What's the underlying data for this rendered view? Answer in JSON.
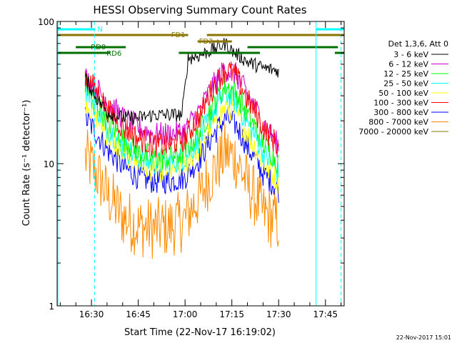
{
  "chart_data": {
    "type": "line",
    "title": "HESSI Observing Summary Count Rates",
    "xlabel": "Start Time (22-Nov-17 16:19:02)",
    "ylabel": "Count Rate (s⁻¹ detector⁻¹)",
    "x_scale": "time",
    "y_scale": "log",
    "xlim": [
      "16:19",
      "17:51"
    ],
    "ylim": [
      1,
      100
    ],
    "x_ticks": [
      "16:30",
      "16:45",
      "17:00",
      "17:15",
      "17:30",
      "17:45"
    ],
    "y_ticks": [
      "1",
      "10",
      "100"
    ],
    "legend_title": "Det 1,3,6, Att 0",
    "legend_position": "right",
    "grid": false,
    "series": [
      {
        "name": "3 - 6 keV",
        "color": "#000000",
        "x": [
          "16:28",
          "16:31",
          "16:35",
          "16:40",
          "16:45",
          "16:50",
          "16:55",
          "16:59",
          "17:00",
          "17:01",
          "17:05",
          "17:10",
          "17:13",
          "17:15",
          "17:20",
          "17:25",
          "17:30"
        ],
        "y": [
          40,
          30,
          23,
          21,
          21,
          22,
          22,
          22,
          34,
          55,
          58,
          65,
          70,
          62,
          52,
          47,
          45
        ]
      },
      {
        "name": "6 - 12 keV",
        "color": "#cc00cc",
        "x": [
          "16:28",
          "16:31",
          "16:35",
          "16:40",
          "16:45",
          "16:50",
          "16:55",
          "17:00",
          "17:05",
          "17:10",
          "17:13",
          "17:16",
          "17:20",
          "17:25",
          "17:30"
        ],
        "y": [
          40,
          35,
          27,
          21,
          18,
          16,
          16,
          17,
          24,
          38,
          46,
          43,
          30,
          19,
          13
        ]
      },
      {
        "name": "12 - 25 keV",
        "color": "#00ff00",
        "x": [
          "16:28",
          "16:31",
          "16:35",
          "16:40",
          "16:45",
          "16:50",
          "16:55",
          "17:00",
          "17:05",
          "17:10",
          "17:13",
          "17:16",
          "17:20",
          "17:25",
          "17:30"
        ],
        "y": [
          36,
          28,
          20,
          15,
          12,
          11,
          11,
          12,
          17,
          28,
          35,
          32,
          22,
          14,
          10
        ]
      },
      {
        "name": "25 - 50 keV",
        "color": "#00ffff",
        "x": [
          "16:28",
          "16:31",
          "16:35",
          "16:40",
          "16:45",
          "16:50",
          "16:55",
          "17:00",
          "17:05",
          "17:10",
          "17:13",
          "17:16",
          "17:20",
          "17:25",
          "17:30"
        ],
        "y": [
          34,
          26,
          18,
          13,
          11,
          10,
          10,
          11,
          15,
          25,
          31,
          28,
          19,
          12,
          8.5
        ]
      },
      {
        "name": "50 - 100 keV",
        "color": "#ffff00",
        "x": [
          "16:28",
          "16:31",
          "16:35",
          "16:40",
          "16:45",
          "16:50",
          "16:55",
          "17:00",
          "17:05",
          "17:10",
          "17:13",
          "17:16",
          "17:20",
          "17:25",
          "17:30"
        ],
        "y": [
          28,
          22,
          16,
          12,
          10,
          9,
          9,
          9.5,
          13,
          20,
          25,
          23,
          16,
          10,
          7.5
        ]
      },
      {
        "name": "100 - 300 keV",
        "color": "#ff0000",
        "x": [
          "16:28",
          "16:31",
          "16:35",
          "16:40",
          "16:45",
          "16:50",
          "16:55",
          "17:00",
          "17:05",
          "17:10",
          "17:13",
          "17:16",
          "17:20",
          "17:25",
          "17:30"
        ],
        "y": [
          42,
          34,
          24,
          18,
          15,
          13.5,
          13.5,
          15,
          22,
          37,
          46,
          42,
          28,
          18,
          13
        ]
      },
      {
        "name": "300 - 800 keV",
        "color": "#0000ff",
        "x": [
          "16:28",
          "16:31",
          "16:35",
          "16:40",
          "16:45",
          "16:50",
          "16:55",
          "17:00",
          "17:05",
          "17:10",
          "17:13",
          "17:16",
          "17:20",
          "17:25",
          "17:30"
        ],
        "y": [
          21,
          17,
          12.5,
          9.5,
          8,
          7.5,
          7.5,
          8,
          11,
          17,
          21,
          19,
          13,
          8.5,
          6.5
        ]
      },
      {
        "name": "800 - 7000 keV",
        "color": "#ff8c00",
        "x": [
          "16:28",
          "16:31",
          "16:35",
          "16:40",
          "16:45",
          "16:50",
          "16:55",
          "17:00",
          "17:05",
          "17:10",
          "17:13",
          "17:16",
          "17:20",
          "17:25",
          "17:30"
        ],
        "y": [
          11,
          9,
          6,
          4.2,
          3.6,
          3.5,
          3.6,
          4,
          6,
          9.5,
          12,
          11,
          7,
          4.5,
          3.8
        ]
      },
      {
        "name": "7000 - 20000 keV",
        "color": "#8b7500",
        "x": [],
        "y": []
      }
    ],
    "annotations": {
      "flags": [
        {
          "label": "N",
          "color": "#00ffff",
          "segments": [
            [
              "16:19",
              "16:31"
            ],
            [
              "17:42",
              "17:51"
            ]
          ]
        },
        {
          "label": "FD1",
          "color": "#8b7500",
          "segments": [
            [
              "16:19",
              "17:01"
            ],
            [
              "17:07",
              "17:51"
            ]
          ]
        },
        {
          "label": "FD2",
          "color": "#8b7500",
          "segments": [
            [
              "17:04",
              "17:15"
            ]
          ]
        },
        {
          "label": "RD0",
          "color": "#007000",
          "segments": [
            [
              "16:25",
              "16:41"
            ],
            [
              "17:20",
              "17:49"
            ]
          ]
        },
        {
          "label": "RD6",
          "color": "#007000",
          "segments": [
            [
              "16:19",
              "16:36"
            ],
            [
              "16:58",
              "17:24"
            ],
            [
              "17:48",
              "17:51"
            ]
          ]
        }
      ],
      "vertical_lines": [
        {
          "x": "16:19",
          "color": "#00ffff",
          "style": "solid"
        },
        {
          "x": "16:31",
          "color": "#00ffff",
          "style": "dashed"
        },
        {
          "x": "17:42",
          "color": "#00ffff",
          "style": "solid"
        },
        {
          "x": "17:50",
          "color": "#00ffff",
          "style": "dashed"
        }
      ]
    }
  },
  "footer_timestamp": "22-Nov-2017 15:01"
}
